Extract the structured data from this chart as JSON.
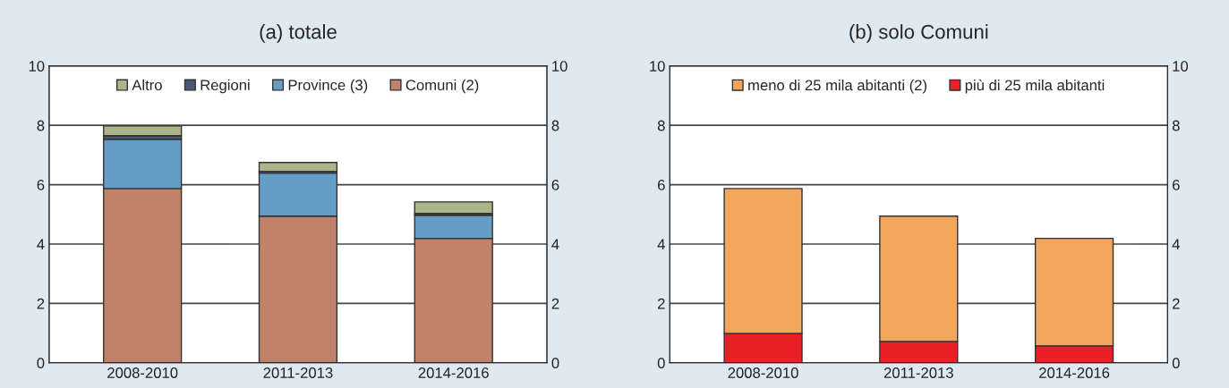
{
  "chart_data": [
    {
      "type": "bar",
      "title": "(a) totale",
      "stacked": true,
      "categories": [
        "2008-2010",
        "2011-2013",
        "2014-2016"
      ],
      "series": [
        {
          "name": "Comuni (2)",
          "color": "#c1826b",
          "values": [
            5.87,
            4.94,
            4.19
          ]
        },
        {
          "name": "Province (3)",
          "color": "#659ec4",
          "values": [
            1.66,
            1.45,
            0.78
          ]
        },
        {
          "name": "Regioni",
          "color": "#4a5a75",
          "values": [
            0.12,
            0.06,
            0.06
          ]
        },
        {
          "name": "Altro",
          "color": "#aab58a",
          "values": [
            0.33,
            0.3,
            0.39
          ]
        }
      ],
      "ylim": [
        0,
        10
      ],
      "yticks": [
        0,
        2,
        4,
        6,
        8,
        10
      ],
      "y2lim": [
        0,
        10
      ],
      "y2ticks": [
        0,
        2,
        4,
        6,
        8,
        10
      ],
      "grid": "y",
      "legend": "top"
    },
    {
      "type": "bar",
      "title": "(b) solo Comuni",
      "stacked": true,
      "categories": [
        "2008-2010",
        "2011-2013",
        "2014-2016"
      ],
      "series": [
        {
          "name": "più di 25 mila abitanti",
          "color": "#e82127",
          "values": [
            0.99,
            0.72,
            0.57
          ]
        },
        {
          "name": "meno di 25 mila abitanti (2)",
          "color": "#f2a65e",
          "values": [
            4.88,
            4.22,
            3.62
          ]
        }
      ],
      "ylim": [
        0,
        10
      ],
      "yticks": [
        0,
        2,
        4,
        6,
        8,
        10
      ],
      "y2lim": [
        0,
        10
      ],
      "y2ticks": [
        0,
        2,
        4,
        6,
        8,
        10
      ],
      "grid": "y",
      "legend": "top"
    }
  ]
}
